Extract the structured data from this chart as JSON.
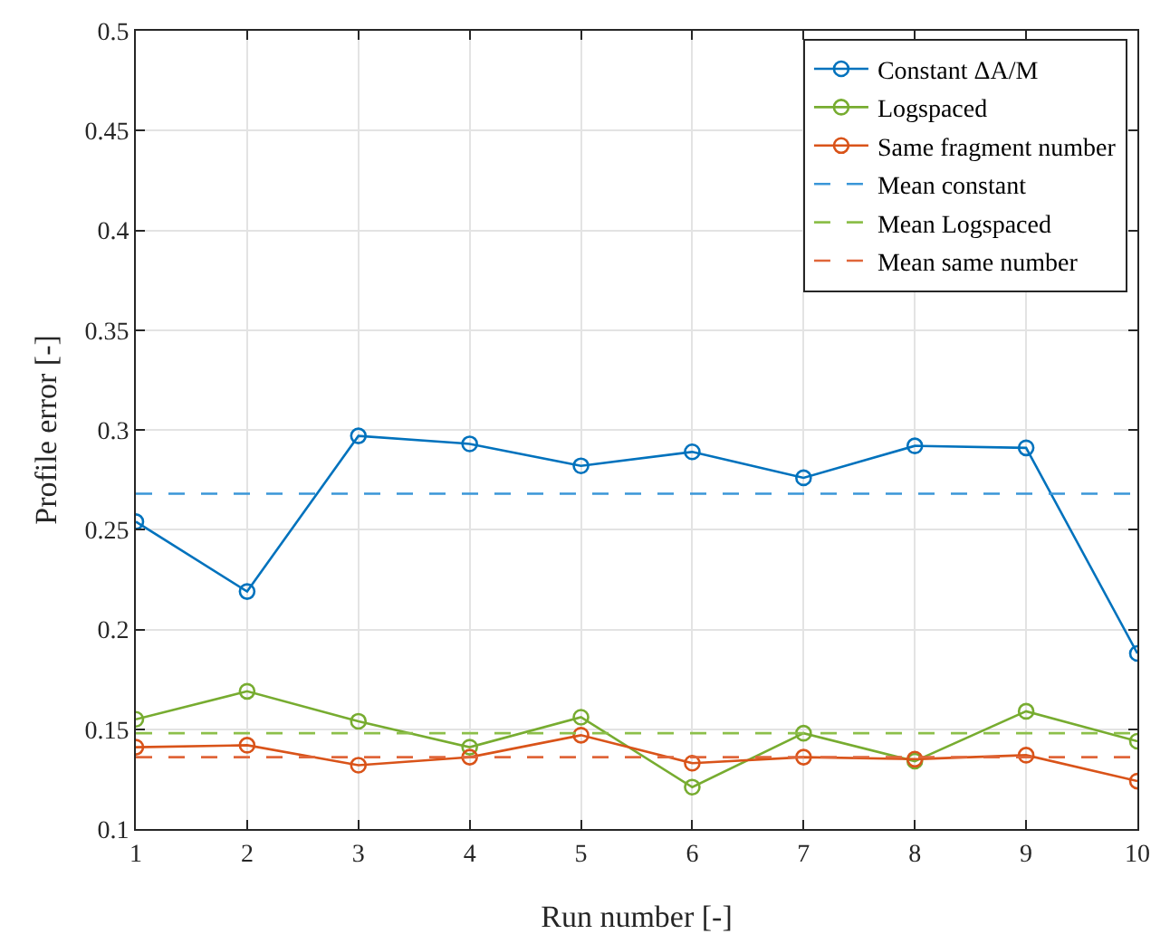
{
  "chart_data": {
    "type": "line",
    "xlabel": "Run number [-]",
    "ylabel": "Profile error [-]",
    "x": [
      1,
      2,
      3,
      4,
      5,
      6,
      7,
      8,
      9,
      10
    ],
    "xlim": [
      1,
      10
    ],
    "xticks": [
      1,
      2,
      3,
      4,
      5,
      6,
      7,
      8,
      9,
      10
    ],
    "ylim": [
      0.1,
      0.5
    ],
    "yticks": [
      0.1,
      0.15,
      0.2,
      0.25,
      0.3,
      0.35,
      0.4,
      0.45,
      0.5
    ],
    "grid": true,
    "legend": "top right",
    "marker": "circle",
    "line_style": "solid",
    "series": [
      {
        "name": "Constant ΔA/M",
        "color": "#0072bd",
        "values": [
          0.254,
          0.219,
          0.297,
          0.293,
          0.282,
          0.289,
          0.276,
          0.292,
          0.291,
          0.188
        ]
      },
      {
        "name": "Logspaced",
        "color": "#77ac30",
        "values": [
          0.155,
          0.169,
          0.154,
          0.141,
          0.156,
          0.121,
          0.148,
          0.134,
          0.159,
          0.144
        ]
      },
      {
        "name": "Same fragment number",
        "color": "#d95319",
        "values": [
          0.141,
          0.142,
          0.132,
          0.136,
          0.147,
          0.133,
          0.136,
          0.135,
          0.137,
          0.124
        ]
      }
    ],
    "ref_lines": [
      {
        "axis": "y",
        "value": 0.268,
        "label": "Mean constant",
        "color": "#3a96d8",
        "line_style": "dashed"
      },
      {
        "axis": "y",
        "value": 0.148,
        "label": "Mean Logspaced",
        "color": "#8cbf4a",
        "line_style": "dashed"
      },
      {
        "axis": "y",
        "value": 0.136,
        "label": "Mean same number",
        "color": "#e0663a",
        "line_style": "dashed"
      }
    ]
  }
}
